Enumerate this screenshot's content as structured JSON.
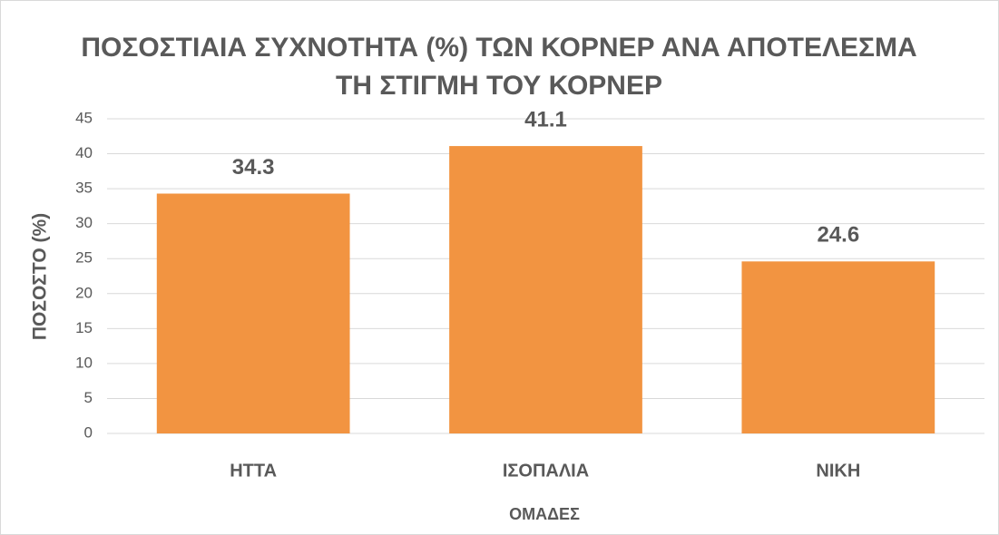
{
  "chart_data": {
    "type": "bar",
    "title": "ΠΟΣΟΣΤΙΑΙΑ ΣΥΧΝΟΤΗΤΑ (%) ΤΩΝ ΚΟΡΝΕΡ ΑΝΑ ΑΠΟΤΕΛΕΣΜΑ ΤΗ ΣΤΙΓΜΗ ΤΟΥ ΚΟΡΝΕΡ",
    "x_label": "ΟΜΑΔΕΣ",
    "y_label": "ΠΟΣΟΣΤΟ (%)",
    "categories": [
      "ΗΤΤΑ",
      "ΙΣΟΠΑΛΙΑ",
      "ΝΙΚΗ"
    ],
    "values": [
      34.3,
      41.1,
      24.6
    ],
    "color": "#f29441",
    "ylim": [
      0,
      45
    ],
    "yticks": [
      0,
      5,
      10,
      15,
      20,
      25,
      30,
      35,
      40,
      45
    ],
    "grid": true
  }
}
